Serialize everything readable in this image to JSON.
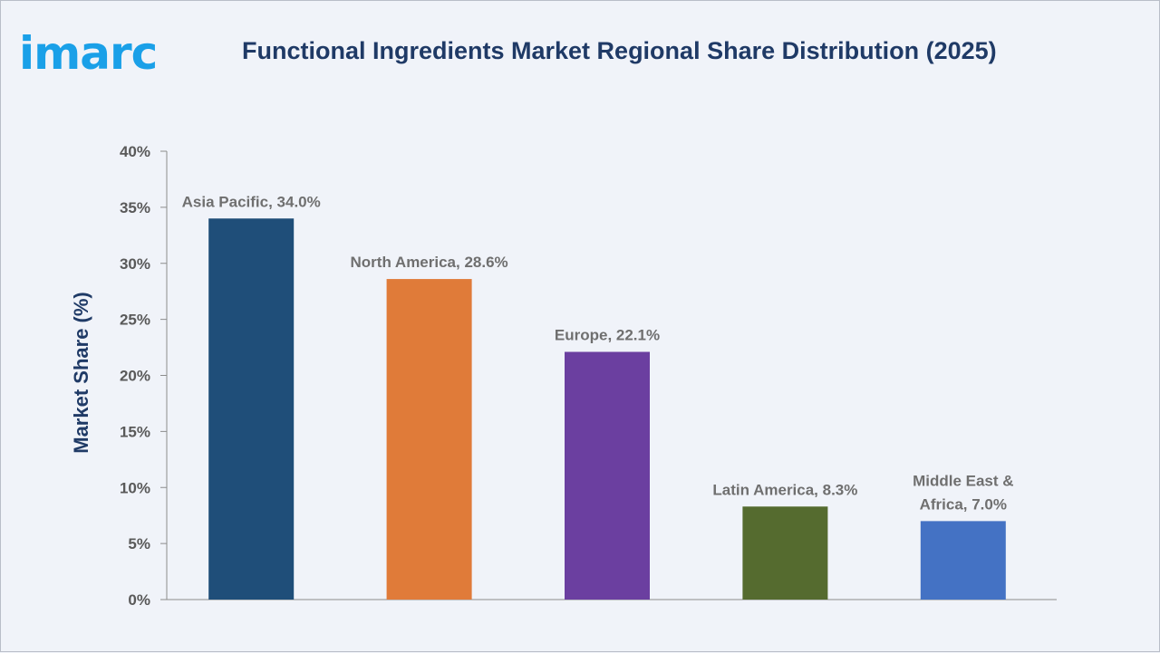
{
  "logo_text": "imarc",
  "chart_data": {
    "type": "bar",
    "title": "Functional Ingredients Market Regional Share Distribution (2025)",
    "xlabel": "",
    "ylabel": "Market Share (%)",
    "ylim": [
      0,
      40
    ],
    "yticks": [
      "0%",
      "5%",
      "10%",
      "15%",
      "20%",
      "25%",
      "30%",
      "35%",
      "40%"
    ],
    "grid": false,
    "categories": [
      "Asia Pacific",
      "North America",
      "Europe",
      "Latin America",
      "Middle East & Africa"
    ],
    "values": [
      34.0,
      28.6,
      22.1,
      8.3,
      7.0
    ],
    "data_labels": [
      [
        "Asia Pacific, 34.0%"
      ],
      [
        "North America, 28.6%"
      ],
      [
        "Europe, 22.1%"
      ],
      [
        "Latin America, 8.3%"
      ],
      [
        "Middle East &",
        "Africa, 7.0%"
      ]
    ],
    "colors": [
      "#1f4e79",
      "#e07b39",
      "#6b3fa0",
      "#556b2f",
      "#4472c4"
    ]
  }
}
